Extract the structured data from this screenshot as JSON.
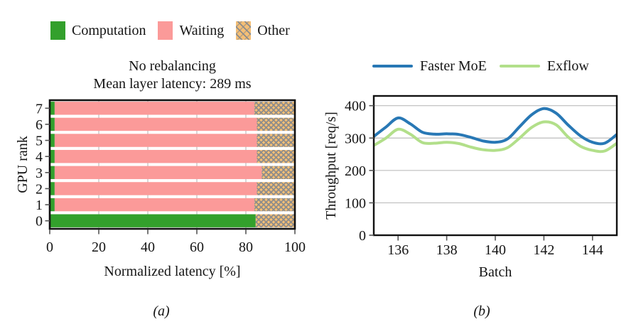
{
  "figure": {
    "background": "#ffffff",
    "text_color": "#151515",
    "grid_color": "#bdbdbd",
    "axis_color": "#111111"
  },
  "chart_data": [
    {
      "id": "a",
      "type": "bar",
      "orientation": "horizontal",
      "title_lines": [
        "No rebalancing",
        "Mean layer latency: 289 ms"
      ],
      "caption": "(a)",
      "xlabel": "Normalized latency [%]",
      "ylabel": "GPU rank",
      "categories": [
        "0",
        "1",
        "2",
        "3",
        "4",
        "5",
        "6",
        "7"
      ],
      "xlim": [
        0,
        100
      ],
      "xticks": [
        0,
        20,
        40,
        60,
        80,
        100
      ],
      "grid": "vertical",
      "legend_position": "top-left",
      "series": [
        {
          "name": "Computation",
          "color": "#33a02c",
          "hatch": false,
          "values": [
            84,
            2,
            2,
            2,
            2,
            2,
            2,
            2
          ]
        },
        {
          "name": "Waiting",
          "color": "#fb9a99",
          "hatch": false,
          "values": [
            0,
            81.5,
            82.5,
            84.5,
            82.5,
            82.5,
            82.5,
            81.5
          ]
        },
        {
          "name": "Other",
          "color": "#f5bf75",
          "hatch": true,
          "hatch_color": "#8c8c8c",
          "values": [
            16,
            16.5,
            15.5,
            13.5,
            15.5,
            15.5,
            15.5,
            16.5
          ]
        }
      ]
    },
    {
      "id": "b",
      "type": "line",
      "caption": "(b)",
      "xlabel": "Batch",
      "ylabel": "Throughput [req/s]",
      "xlim": [
        135,
        145
      ],
      "ylim": [
        0,
        430
      ],
      "xticks": [
        136,
        138,
        140,
        142,
        144
      ],
      "yticks": [
        0,
        100,
        200,
        300,
        400
      ],
      "grid": "horizontal",
      "legend_position": "top-center",
      "x": [
        135,
        135.5,
        136,
        136.5,
        137,
        137.5,
        138,
        138.5,
        139,
        139.5,
        140,
        140.5,
        141,
        141.5,
        142,
        142.5,
        143,
        143.5,
        144,
        144.5,
        145
      ],
      "series": [
        {
          "name": "Faster MoE",
          "color": "#2878b5",
          "values": [
            305,
            334,
            362,
            344,
            318,
            312,
            313,
            311,
            302,
            291,
            287,
            297,
            335,
            372,
            391,
            377,
            340,
            307,
            287,
            284,
            311
          ]
        },
        {
          "name": "Exflow",
          "color": "#b2df8a",
          "values": [
            277,
            300,
            327,
            312,
            286,
            284,
            287,
            283,
            272,
            264,
            262,
            270,
            300,
            333,
            350,
            341,
            303,
            275,
            262,
            260,
            284
          ]
        }
      ]
    }
  ]
}
